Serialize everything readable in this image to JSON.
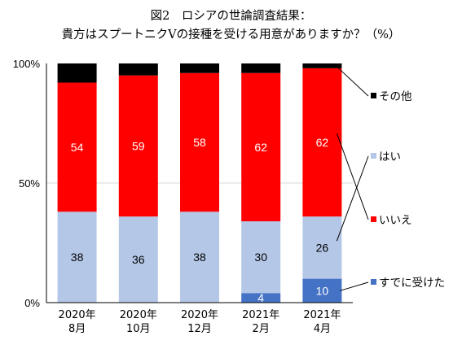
{
  "title": "図2　ロシアの世論調査結果：",
  "subtitle": "貴方はスプートニクVの接種を受ける用意がありますか？（%）",
  "chart_data": {
    "type": "bar",
    "stacked": true,
    "categories": [
      [
        "2020年",
        "8月"
      ],
      [
        "2020年",
        "10月"
      ],
      [
        "2020年",
        "12月"
      ],
      [
        "2021年",
        "2月"
      ],
      [
        "2021年",
        "4月"
      ]
    ],
    "ylim": [
      0,
      100
    ],
    "yticks": [
      "0%",
      "50%",
      "100%"
    ],
    "grid": true,
    "legend_position": "right",
    "series": [
      {
        "name": "すでに受けた",
        "color": "#4472c4",
        "label_color": "#ffffff",
        "values": [
          0,
          0,
          0,
          4,
          10
        ],
        "labels": [
          "",
          "",
          "",
          "4",
          "10"
        ]
      },
      {
        "name": "はい",
        "color": "#b4c7e7",
        "label_color": "#000000",
        "values": [
          38,
          36,
          38,
          30,
          26
        ],
        "labels": [
          "38",
          "36",
          "38",
          "30",
          "26"
        ]
      },
      {
        "name": "いいえ",
        "color": "#ff0000",
        "label_color": "#ffffff",
        "values": [
          54,
          59,
          58,
          62,
          62
        ],
        "labels": [
          "54",
          "59",
          "58",
          "62",
          "62"
        ]
      },
      {
        "name": "その他",
        "color": "#000000",
        "label_color": "#ffffff",
        "values": [
          8,
          5,
          4,
          4,
          2
        ],
        "labels": [
          "",
          "",
          "",
          "",
          ""
        ]
      }
    ]
  }
}
